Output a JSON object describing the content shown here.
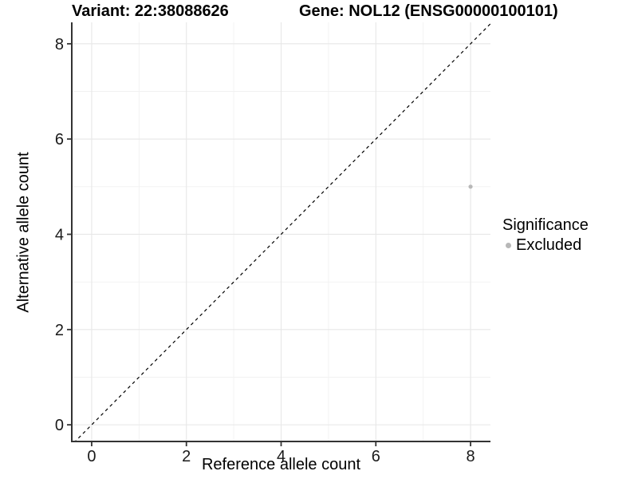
{
  "header": {
    "variant_title": "Variant: 22:38088626",
    "gene_title": "Gene: NOL12 (ENSG00000100101)"
  },
  "chart_data": {
    "type": "scatter",
    "xlabel": "Reference allele count",
    "ylabel": "Alternative allele count",
    "xlim": [
      -0.42,
      8.42
    ],
    "ylim": [
      -0.35,
      8.45
    ],
    "xticks": [
      0,
      2,
      4,
      6,
      8
    ],
    "yticks": [
      0,
      2,
      4,
      6,
      8
    ],
    "xminor": [
      1,
      3,
      5,
      7
    ],
    "yminor": [
      1,
      3,
      5,
      7
    ],
    "grid": "major+minor",
    "reference_line": {
      "equation": "y = x",
      "style": "dashed"
    },
    "series": [
      {
        "name": "Excluded",
        "color": "#b8b8b8",
        "points": [
          {
            "x": 8,
            "y": 5
          }
        ]
      }
    ],
    "legend_position": "right"
  },
  "legend": {
    "title": "Significance",
    "items": [
      {
        "label": "Excluded",
        "color": "#b8b8b8"
      }
    ]
  },
  "colors": {
    "background": "#ffffff",
    "grid_major": "#e7e7e7",
    "grid_minor": "#f1f1f1",
    "axis": "#333333",
    "tick_label": "#1a1a1a",
    "title_text": "#000000",
    "reference_line": "#000000",
    "point": "#b8b8b8"
  }
}
